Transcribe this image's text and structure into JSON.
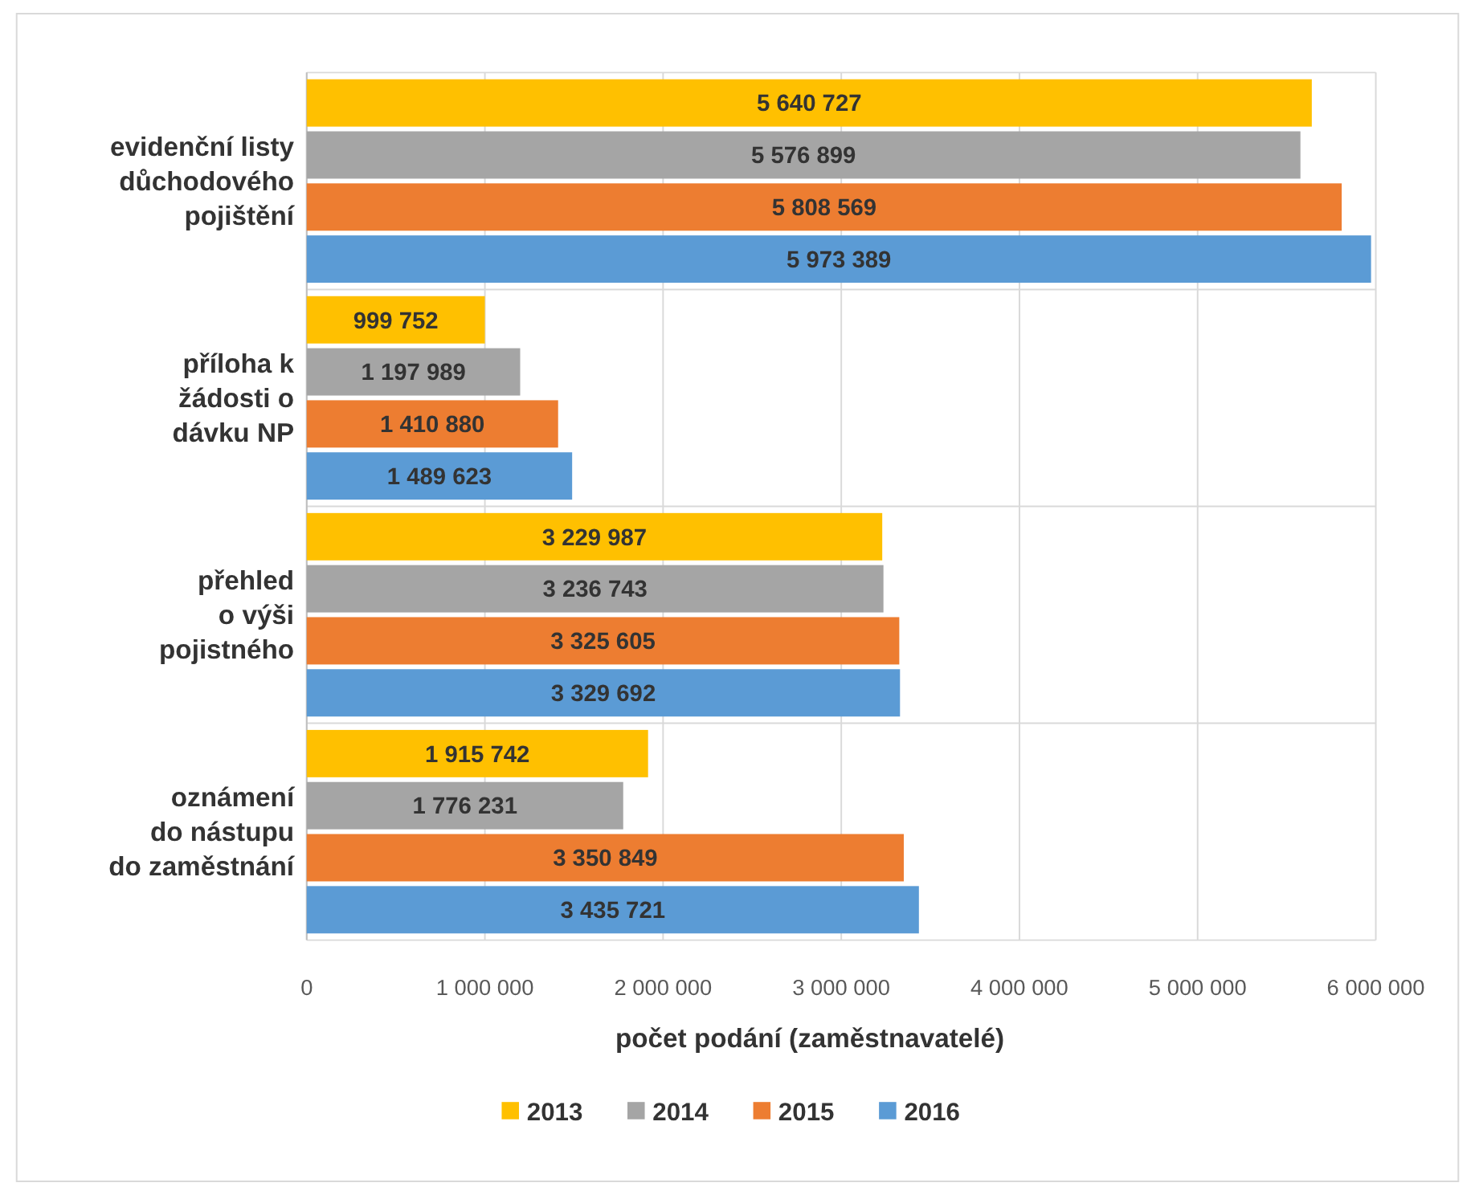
{
  "chart_data": {
    "type": "bar",
    "orientation": "horizontal",
    "xlabel": "počet podání (zaměstnavatelé)",
    "categories": [
      "evidenční listy\ndůchodového\npojištění",
      "příloha k\nžádosti o\ndávku NP",
      "přehled\no výši\npojistného",
      "oznámení\ndo nástupu\ndo zaměstnání"
    ],
    "series": [
      {
        "name": "2013",
        "color": "#ffc000",
        "values": [
          5640727,
          999752,
          3229987,
          1915742
        ],
        "value_labels": [
          "5 640 727",
          "999 752",
          "3 229 987",
          "1 915 742"
        ]
      },
      {
        "name": "2014",
        "color": "#a5a5a5",
        "values": [
          5576899,
          1197989,
          3236743,
          1776231
        ],
        "value_labels": [
          "5 576 899",
          "1 197 989",
          "3 236 743",
          "1 776 231"
        ]
      },
      {
        "name": "2015",
        "color": "#ed7d31",
        "values": [
          5808569,
          1410880,
          3325605,
          3350849
        ],
        "value_labels": [
          "5 808 569",
          "1 410 880",
          "3 325 605",
          "3 350 849"
        ]
      },
      {
        "name": "2016",
        "color": "#5b9bd5",
        "values": [
          5973389,
          1489623,
          3329692,
          3435721
        ],
        "value_labels": [
          "5 973 389",
          "1 489 623",
          "3 329 692",
          "3 435 721"
        ]
      }
    ],
    "xlim": [
      0,
      6000000
    ],
    "xticks": [
      0,
      {
        "value": 1000000,
        "label": "1 000 000"
      },
      {
        "value": 2000000,
        "label": "2 000 000"
      },
      {
        "value": 3000000,
        "label": "3 000 000"
      },
      {
        "value": 4000000,
        "label": "4 000 000"
      },
      {
        "value": 5000000,
        "label": "5 000 000"
      },
      {
        "value": 6000000,
        "label": "6 000 000"
      }
    ],
    "grid": true,
    "legend": "bottom"
  }
}
